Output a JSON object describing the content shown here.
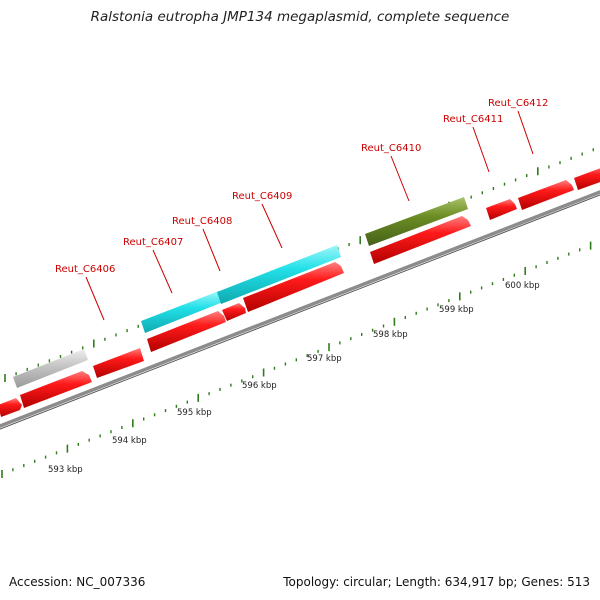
{
  "title": "Ralstonia eutropha JMP134 megaplasmid, complete sequence",
  "accession_label": "Accession: NC_007336",
  "summary": {
    "topology": "Topology: circular;",
    "length": "Length: 634,917 bp;",
    "genes": "Genes: 513"
  },
  "map": {
    "unit": "kbp",
    "kbp_ticks": [
      {
        "kbp": 593,
        "label": "593 kbp"
      },
      {
        "kbp": 594,
        "label": "594 kbp"
      },
      {
        "kbp": 595,
        "label": "595 kbp"
      },
      {
        "kbp": 596,
        "label": "596 kbp"
      },
      {
        "kbp": 597,
        "label": "597 kbp"
      },
      {
        "kbp": 598,
        "label": "598 kbp"
      },
      {
        "kbp": 599,
        "label": "599 kbp"
      },
      {
        "kbp": 600,
        "label": "600 kbp"
      }
    ],
    "colors": {
      "gene": "#ff0000",
      "backbone": "#8c8c8c",
      "tick": "#2e7d1a",
      "label": "#cc0000",
      "feature_gray": "#c8c8c8",
      "feature_cyan": "#22e0e8",
      "feature_olive": "#6b8c23"
    },
    "gene_labels": [
      "Reut_C6406",
      "Reut_C6407",
      "Reut_C6408",
      "Reut_C6409",
      "Reut_C6410",
      "Reut_C6411",
      "Reut_C6412"
    ]
  }
}
